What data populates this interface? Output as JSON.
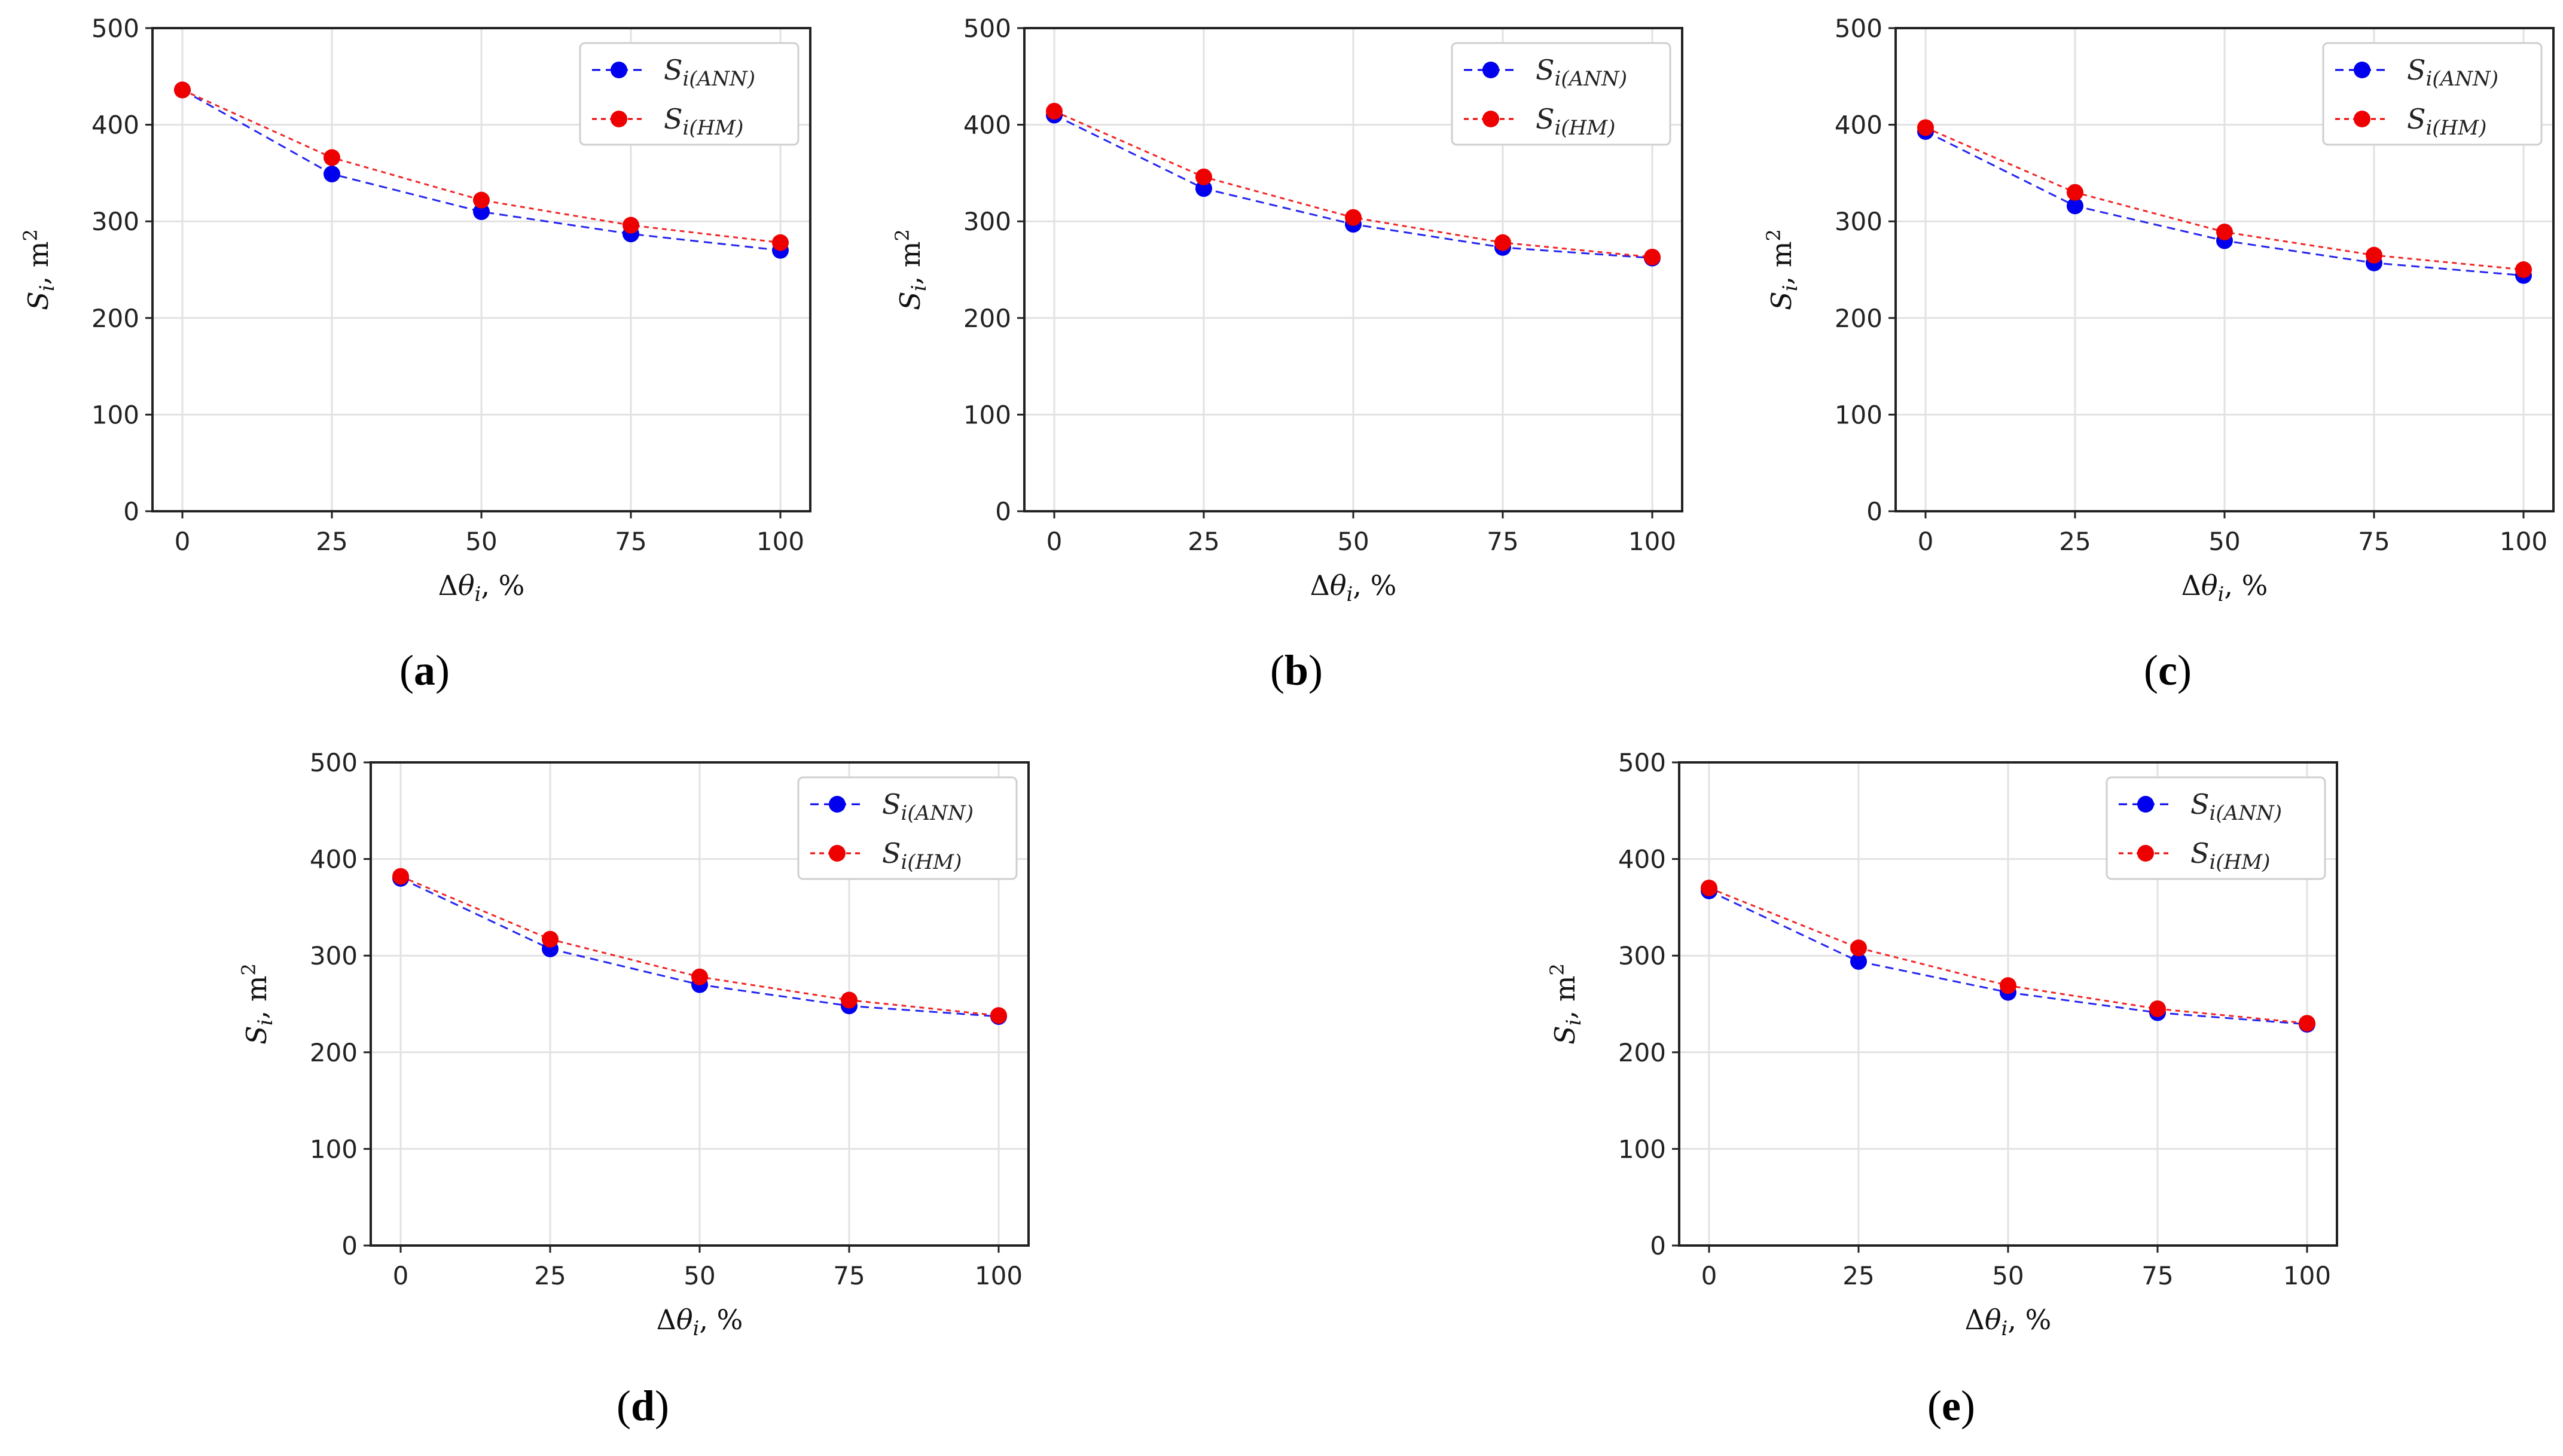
{
  "colors": {
    "ann": "#0000ee",
    "hm": "#ee0000"
  },
  "chart_data": [
    {
      "panel": "a",
      "type": "line",
      "categories": [
        0,
        25,
        50,
        75,
        100
      ],
      "x": [
        0,
        25,
        50,
        75,
        100
      ],
      "xticks": [
        "0",
        "25",
        "50",
        "75",
        "100"
      ],
      "yticks": [
        "0",
        "100",
        "200",
        "300",
        "400",
        "500"
      ],
      "xlim": [
        -5,
        105
      ],
      "ylim": [
        0,
        500
      ],
      "grid": true,
      "legend_position": "top-right",
      "series": [
        {
          "name": "S",
          "sub": "i(ANN)",
          "values": [
            436,
            349,
            310,
            287,
            270
          ]
        },
        {
          "name": "S",
          "sub": "i(HM)",
          "values": [
            436,
            366,
            322,
            296,
            278
          ]
        }
      ]
    },
    {
      "panel": "b",
      "type": "line",
      "categories": [
        0,
        25,
        50,
        75,
        100
      ],
      "x": [
        0,
        25,
        50,
        75,
        100
      ],
      "xticks": [
        "0",
        "25",
        "50",
        "75",
        "100"
      ],
      "yticks": [
        "0",
        "100",
        "200",
        "300",
        "400",
        "500"
      ],
      "xlim": [
        -5,
        105
      ],
      "ylim": [
        0,
        500
      ],
      "grid": true,
      "legend_position": "top-right",
      "series": [
        {
          "name": "S",
          "sub": "i(ANN)",
          "values": [
            410,
            334,
            297,
            273,
            262
          ]
        },
        {
          "name": "S",
          "sub": "i(HM)",
          "values": [
            414,
            346,
            304,
            278,
            263
          ]
        }
      ]
    },
    {
      "panel": "c",
      "type": "line",
      "categories": [
        0,
        25,
        50,
        75,
        100
      ],
      "x": [
        0,
        25,
        50,
        75,
        100
      ],
      "xticks": [
        "0",
        "25",
        "50",
        "75",
        "100"
      ],
      "yticks": [
        "0",
        "100",
        "200",
        "300",
        "400",
        "500"
      ],
      "xlim": [
        -5,
        105
      ],
      "ylim": [
        0,
        500
      ],
      "grid": true,
      "legend_position": "top-right",
      "series": [
        {
          "name": "S",
          "sub": "i(ANN)",
          "values": [
            393,
            316,
            280,
            257,
            244
          ]
        },
        {
          "name": "S",
          "sub": "i(HM)",
          "values": [
            397,
            330,
            289,
            265,
            250
          ]
        }
      ]
    },
    {
      "panel": "d",
      "type": "line",
      "categories": [
        0,
        25,
        50,
        75,
        100
      ],
      "x": [
        0,
        25,
        50,
        75,
        100
      ],
      "xticks": [
        "0",
        "25",
        "50",
        "75",
        "100"
      ],
      "yticks": [
        "0",
        "100",
        "200",
        "300",
        "400",
        "500"
      ],
      "xlim": [
        -5,
        105
      ],
      "ylim": [
        0,
        500
      ],
      "grid": true,
      "legend_position": "top-right",
      "series": [
        {
          "name": "S",
          "sub": "i(ANN)",
          "values": [
            380,
            307,
            270,
            248,
            237
          ]
        },
        {
          "name": "S",
          "sub": "i(HM)",
          "values": [
            382,
            317,
            278,
            254,
            238
          ]
        }
      ]
    },
    {
      "panel": "e",
      "type": "line",
      "categories": [
        0,
        25,
        50,
        75,
        100
      ],
      "x": [
        0,
        25,
        50,
        75,
        100
      ],
      "xticks": [
        "0",
        "25",
        "50",
        "75",
        "100"
      ],
      "yticks": [
        "0",
        "100",
        "200",
        "300",
        "400",
        "500"
      ],
      "xlim": [
        -5,
        105
      ],
      "ylim": [
        0,
        500
      ],
      "grid": true,
      "legend_position": "top-right",
      "series": [
        {
          "name": "S",
          "sub": "i(ANN)",
          "values": [
            367,
            294,
            262,
            241,
            229
          ]
        },
        {
          "name": "S",
          "sub": "i(HM)",
          "values": [
            370,
            308,
            269,
            245,
            230
          ]
        }
      ]
    }
  ]
}
